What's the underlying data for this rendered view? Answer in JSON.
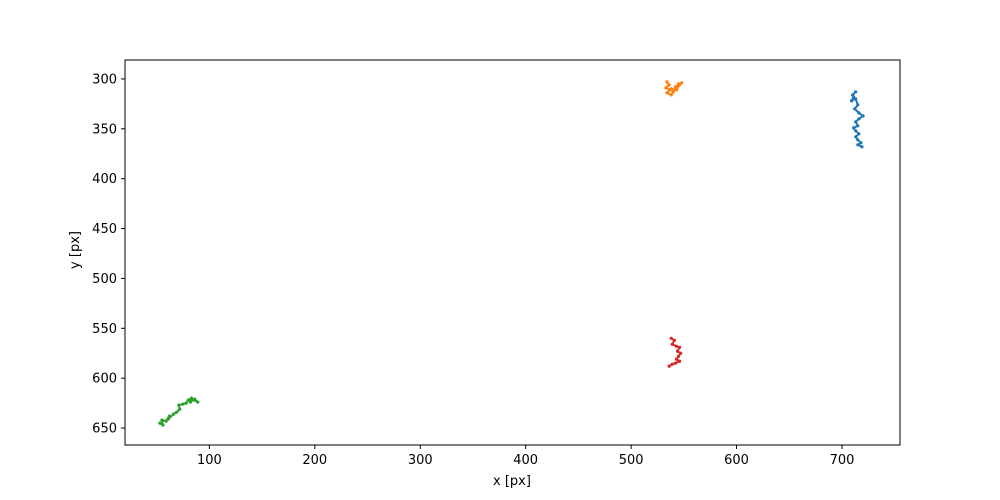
{
  "chart_data": {
    "type": "line",
    "xlabel": "x [px]",
    "ylabel": "y [px]",
    "xlim": [
      20,
      755
    ],
    "ylim": [
      667,
      281
    ],
    "y_inverted": true,
    "grid": false,
    "legend": "none",
    "x_ticks": [
      100,
      200,
      300,
      400,
      500,
      600,
      700
    ],
    "y_ticks": [
      300,
      350,
      400,
      450,
      500,
      550,
      600,
      650
    ],
    "series": [
      {
        "color": "#1f77b4",
        "x": [
          713,
          710,
          711,
          709,
          713,
          715,
          712,
          716,
          720,
          716,
          713,
          715,
          711,
          713,
          716,
          713,
          715,
          718,
          715,
          719
        ],
        "y": [
          313,
          316,
          318,
          322,
          320,
          326,
          330,
          334,
          337,
          340,
          343,
          347,
          349,
          352,
          355,
          358,
          361,
          364,
          366,
          368
        ]
      },
      {
        "color": "#ff7f0e",
        "x": [
          534,
          536,
          533,
          537,
          534,
          538,
          540,
          538,
          543,
          546,
          542,
          548,
          545
        ],
        "y": [
          303,
          306,
          309,
          311,
          314,
          316,
          313,
          310,
          311,
          306,
          308,
          304,
          305
        ]
      },
      {
        "color": "#2ca02c",
        "x": [
          53,
          56,
          55,
          59,
          62,
          61,
          66,
          69,
          72,
          71,
          75,
          78,
          80,
          83,
          82,
          86,
          89,
          86
        ],
        "y": [
          645,
          647,
          642,
          643,
          638,
          641,
          636,
          634,
          631,
          627,
          626,
          625,
          622,
          620,
          624,
          621,
          624,
          622
        ]
      },
      {
        "color": "#d62728",
        "x": [
          538,
          541,
          539,
          543,
          546,
          544,
          547,
          545,
          543,
          546,
          542,
          539,
          536
        ],
        "y": [
          560,
          562,
          566,
          568,
          569,
          573,
          575,
          578,
          581,
          583,
          585,
          586,
          588
        ]
      }
    ]
  }
}
